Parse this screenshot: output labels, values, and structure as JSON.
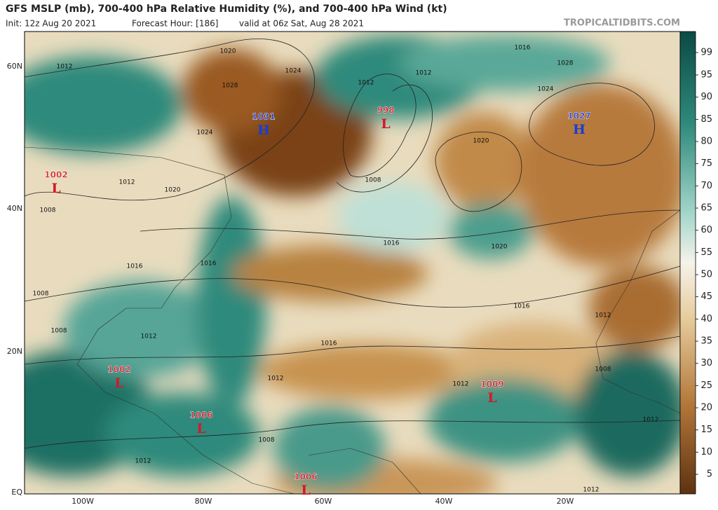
{
  "header": {
    "title": "GFS MSLP (mb), 700-400 hPa Relative Humidity (%), and 700-400 hPa Wind (kt)",
    "init": "Init: 12z Aug 20 2021",
    "forecast_hour": "Forecast Hour: [186]",
    "valid": "valid at 06z Sat, Aug 28 2021",
    "site": "TROPICALTIDBITS.COM"
  },
  "map": {
    "lat_labels": [
      "60N",
      "40N",
      "20N",
      "EQ"
    ],
    "lon_labels": [
      "100W",
      "80W",
      "60W",
      "40W",
      "20W"
    ],
    "centers": [
      {
        "pressure": 1031,
        "label": "H"
      },
      {
        "pressure": 998,
        "label": "L"
      },
      {
        "pressure": 1027,
        "label": "H"
      },
      {
        "pressure": 1002,
        "label": "L"
      },
      {
        "pressure": 1002,
        "label": "L"
      },
      {
        "pressure": 1006,
        "label": "L"
      },
      {
        "pressure": 1009,
        "label": "L"
      },
      {
        "pressure": 1006,
        "label": "L"
      }
    ],
    "isobar_labels": [
      1020,
      1012,
      1024,
      1028,
      1012,
      1012,
      1016,
      1028,
      1024,
      1020,
      1024,
      1012,
      1020,
      1008,
      1008,
      1016,
      1020,
      1016,
      1016,
      1008,
      1016,
      1016,
      1012,
      1008,
      1012,
      1012,
      1012,
      1008,
      1012,
      1008,
      1012,
      1012
    ]
  },
  "colorbar": {
    "ticks": [
      99,
      95,
      90,
      85,
      80,
      75,
      70,
      65,
      60,
      55,
      50,
      45,
      40,
      35,
      30,
      25,
      20,
      15,
      10,
      5
    ]
  }
}
